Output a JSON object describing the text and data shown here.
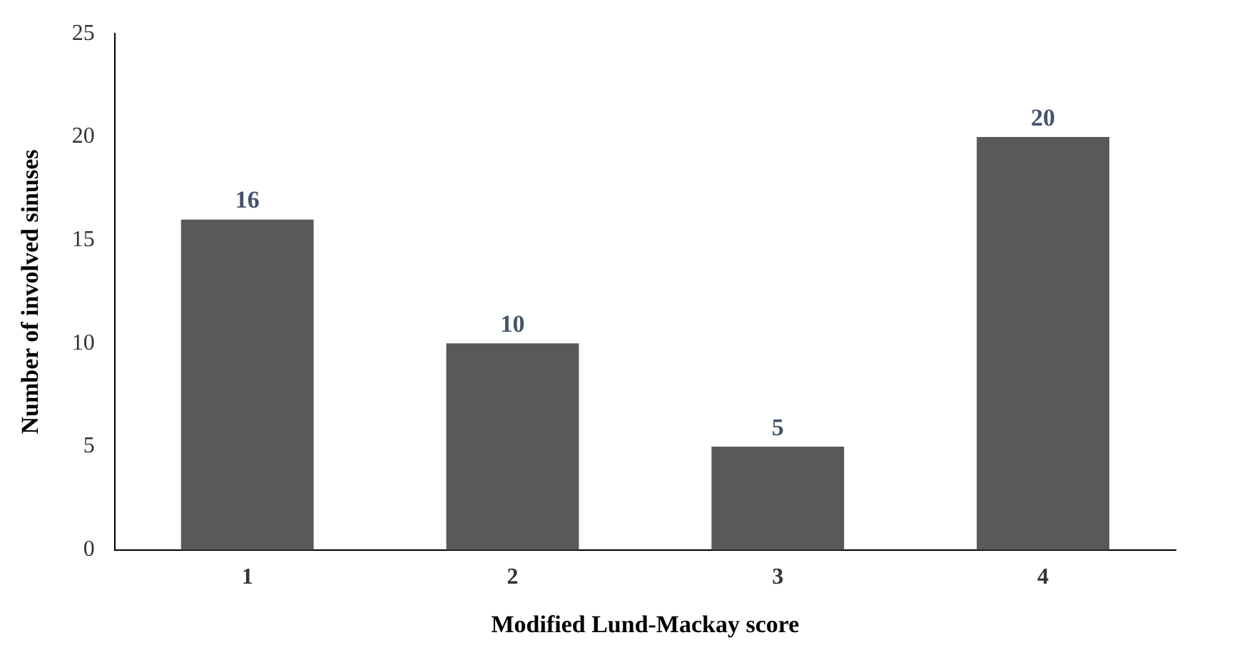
{
  "chart_data": {
    "type": "bar",
    "xlabel": "Modified Lund-Mackay score",
    "ylabel": "Number of involved sinuses",
    "categories": [
      "1",
      "2",
      "3",
      "4"
    ],
    "values": [
      16,
      10,
      5,
      20
    ],
    "color": "#595959",
    "ylim": [
      0,
      25
    ],
    "yticks": [
      0,
      5,
      10,
      15,
      20,
      25
    ],
    "grid": false,
    "data_labels": true
  }
}
